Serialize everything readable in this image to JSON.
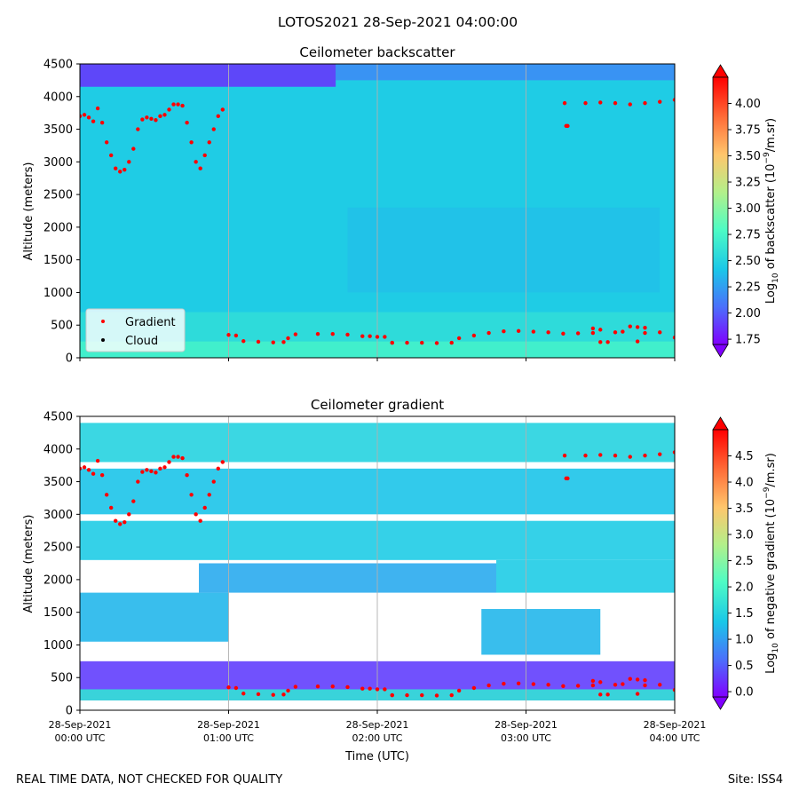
{
  "figure": {
    "suptitle": "LOTOS2021 28-Sep-2021 04:00:00",
    "footer_left": "REAL TIME DATA, NOT CHECKED FOR QUALITY",
    "footer_right": "Site: ISS4"
  },
  "chart_data": [
    {
      "type": "heatmap",
      "title": "Ceilometer backscatter",
      "xlabel": "",
      "ylabel": "Altitude (meters)",
      "x_tick_labels": [
        [
          "28-Sep-2021",
          "00:00 UTC"
        ],
        [
          "28-Sep-2021",
          "01:00 UTC"
        ],
        [
          "28-Sep-2021",
          "02:00 UTC"
        ],
        [
          "28-Sep-2021",
          "03:00 UTC"
        ],
        [
          "28-Sep-2021",
          "04:00 UTC"
        ]
      ],
      "xlim_hours": [
        0,
        4
      ],
      "ylim": [
        0,
        4500
      ],
      "y_ticks": [
        0,
        500,
        1000,
        1500,
        2000,
        2500,
        3000,
        3500,
        4000,
        4500
      ],
      "colorbar": {
        "label": "Log10 of backscatter (10^-9/m.sr)",
        "label_main": "Log",
        "label_sub": "10",
        "label_rest": " of backscatter (10",
        "label_sup": "−9",
        "label_end": "/m.sr)",
        "range": [
          1.7,
          4.25
        ],
        "ticks": [
          "1.75",
          "2.00",
          "2.25",
          "2.50",
          "2.75",
          "3.00",
          "3.25",
          "3.50",
          "3.75",
          "4.00"
        ],
        "tick_values": [
          1.75,
          2.0,
          2.25,
          2.5,
          2.75,
          3.0,
          3.25,
          3.5,
          3.75,
          4.0
        ]
      },
      "legend": {
        "position": "lower-left",
        "entries": [
          {
            "label": "Gradient",
            "color": "#ff0000"
          },
          {
            "label": "Cloud",
            "color": "#000000"
          }
        ]
      },
      "background_level": 2.45,
      "top_layer_level": 1.85
    },
    {
      "type": "heatmap",
      "title": "Ceilometer gradient",
      "xlabel": "Time (UTC)",
      "ylabel": "Altitude (meters)",
      "x_tick_labels": [
        [
          "28-Sep-2021",
          "00:00 UTC"
        ],
        [
          "28-Sep-2021",
          "01:00 UTC"
        ],
        [
          "28-Sep-2021",
          "02:00 UTC"
        ],
        [
          "28-Sep-2021",
          "03:00 UTC"
        ],
        [
          "28-Sep-2021",
          "04:00 UTC"
        ]
      ],
      "xlim_hours": [
        0,
        4
      ],
      "ylim": [
        0,
        4500
      ],
      "y_ticks": [
        0,
        500,
        1000,
        1500,
        2000,
        2500,
        3000,
        3500,
        4000,
        4500
      ],
      "colorbar": {
        "label": "Log10 of negative gradient (10^-9/m.sr)",
        "label_main": "Log",
        "label_sub": "10",
        "label_rest": " of negative gradient (10",
        "label_sup": "−9",
        "label_end": "/m.sr)",
        "range": [
          -0.1,
          5.0
        ],
        "ticks": [
          "0.0",
          "0.5",
          "1.0",
          "1.5",
          "2.0",
          "2.5",
          "3.0",
          "3.5",
          "4.0",
          "4.5"
        ],
        "tick_values": [
          0.0,
          0.5,
          1.0,
          1.5,
          2.0,
          2.5,
          3.0,
          3.5,
          4.0,
          4.5
        ]
      },
      "bands": [
        {
          "t0": 0.0,
          "t1": 4.0,
          "a0": 150,
          "a1": 750,
          "level": 0.3
        },
        {
          "t0": 0.0,
          "t1": 4.0,
          "a0": 150,
          "a1": 320,
          "level": 1.7
        },
        {
          "t0": 0.0,
          "t1": 1.0,
          "a0": 1050,
          "a1": 1800,
          "level": 1.2
        },
        {
          "t0": 0.8,
          "t1": 2.8,
          "a0": 1800,
          "a1": 2250,
          "level": 1.1
        },
        {
          "t0": 0.0,
          "t1": 4.0,
          "a0": 2300,
          "a1": 2900,
          "level": 1.4
        },
        {
          "t0": 2.8,
          "t1": 4.0,
          "a0": 1800,
          "a1": 2300,
          "level": 1.4
        },
        {
          "t0": 2.7,
          "t1": 3.5,
          "a0": 850,
          "a1": 1550,
          "level": 1.2
        },
        {
          "t0": 0.0,
          "t1": 4.0,
          "a0": 3000,
          "a1": 3700,
          "level": 1.3
        },
        {
          "t0": 0.0,
          "t1": 4.0,
          "a0": 3800,
          "a1": 4400,
          "level": 1.5
        }
      ]
    }
  ],
  "gradient_series": [
    [
      0.0,
      3700
    ],
    [
      0.03,
      3720
    ],
    [
      0.06,
      3680
    ],
    [
      0.09,
      3620
    ],
    [
      0.12,
      3820
    ],
    [
      0.15,
      3600
    ],
    [
      0.18,
      3300
    ],
    [
      0.21,
      3100
    ],
    [
      0.24,
      2900
    ],
    [
      0.27,
      2850
    ],
    [
      0.3,
      2880
    ],
    [
      0.33,
      3000
    ],
    [
      0.36,
      3200
    ],
    [
      0.39,
      3500
    ],
    [
      0.42,
      3650
    ],
    [
      0.45,
      3680
    ],
    [
      0.48,
      3660
    ],
    [
      0.51,
      3640
    ],
    [
      0.54,
      3700
    ],
    [
      0.57,
      3720
    ],
    [
      0.6,
      3800
    ],
    [
      0.63,
      3880
    ],
    [
      0.66,
      3880
    ],
    [
      0.69,
      3860
    ],
    [
      0.72,
      3600
    ],
    [
      0.75,
      3300
    ],
    [
      0.78,
      3000
    ],
    [
      0.81,
      2900
    ],
    [
      0.84,
      3100
    ],
    [
      0.87,
      3300
    ],
    [
      0.9,
      3500
    ],
    [
      0.93,
      3700
    ],
    [
      0.96,
      3800
    ],
    [
      1.0,
      350
    ],
    [
      1.05,
      340
    ],
    [
      1.1,
      255
    ],
    [
      1.2,
      245
    ],
    [
      1.3,
      235
    ],
    [
      1.37,
      240
    ],
    [
      1.4,
      300
    ],
    [
      1.45,
      360
    ],
    [
      1.6,
      365
    ],
    [
      1.7,
      365
    ],
    [
      1.8,
      355
    ],
    [
      1.9,
      330
    ],
    [
      1.95,
      330
    ],
    [
      2.0,
      320
    ],
    [
      2.05,
      320
    ],
    [
      2.1,
      230
    ],
    [
      2.2,
      230
    ],
    [
      2.3,
      230
    ],
    [
      2.4,
      225
    ],
    [
      2.5,
      230
    ],
    [
      2.55,
      300
    ],
    [
      2.65,
      340
    ],
    [
      2.75,
      380
    ],
    [
      2.85,
      405
    ],
    [
      2.95,
      410
    ],
    [
      3.05,
      400
    ],
    [
      3.15,
      390
    ],
    [
      3.25,
      370
    ],
    [
      3.35,
      375
    ],
    [
      3.45,
      380
    ],
    [
      3.5,
      240
    ],
    [
      3.55,
      240
    ],
    [
      3.6,
      390
    ],
    [
      3.65,
      400
    ],
    [
      3.75,
      250
    ],
    [
      3.8,
      380
    ],
    [
      3.9,
      390
    ],
    [
      4.0,
      310
    ],
    [
      3.4,
      3900
    ],
    [
      3.5,
      3910
    ],
    [
      3.6,
      3900
    ],
    [
      3.7,
      3880
    ],
    [
      3.8,
      3900
    ],
    [
      3.9,
      3920
    ],
    [
      4.0,
      3950
    ],
    [
      3.27,
      3550
    ],
    [
      3.28,
      3550
    ],
    [
      3.26,
      3900
    ],
    [
      2.1,
      230
    ],
    [
      3.45,
      450
    ],
    [
      3.5,
      430
    ],
    [
      3.7,
      480
    ],
    [
      3.75,
      470
    ],
    [
      3.8,
      460
    ]
  ]
}
